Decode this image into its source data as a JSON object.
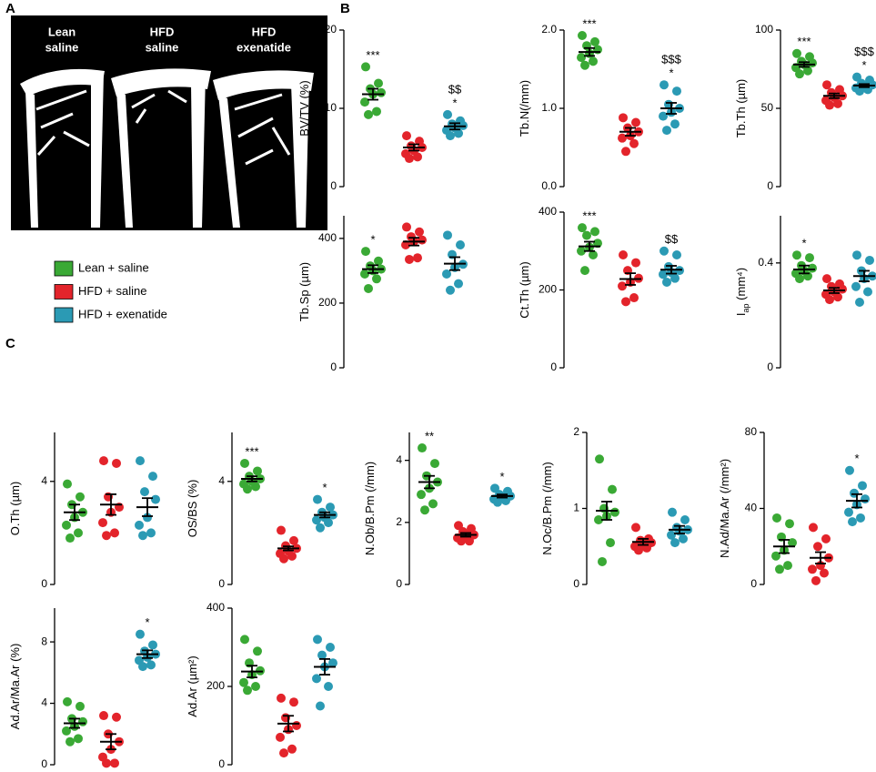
{
  "panels": [
    "A",
    "B",
    "C"
  ],
  "images": [
    {
      "label": [
        "Lean",
        "saline"
      ]
    },
    {
      "label": [
        "HFD",
        "saline"
      ]
    },
    {
      "label": [
        "HFD",
        "exenatide"
      ]
    }
  ],
  "groups": [
    {
      "name": "Lean + saline",
      "color": "#3aa935"
    },
    {
      "name": "HFD + saline",
      "color": "#e3242b"
    },
    {
      "name": "HFD + exenatide",
      "color": "#2b9ab4"
    }
  ],
  "chart_data": [
    {
      "type": "scatter",
      "ylabel": "BV/TV (%)",
      "ylim": [
        0,
        20
      ],
      "yticks": [
        0,
        10,
        20
      ],
      "series": [
        {
          "values": [
            15.3,
            13.2,
            12.5,
            12,
            11.8,
            10.8,
            9.6,
            9.2
          ],
          "mean": 11.8,
          "sem": 0.7,
          "annotations": [
            "***"
          ]
        },
        {
          "values": [
            6.5,
            5.8,
            5.2,
            5,
            4.6,
            4.2,
            3.8,
            3.6
          ],
          "mean": 5,
          "sem": 0.4,
          "annotations": []
        },
        {
          "values": [
            9.2,
            8.4,
            8,
            7.8,
            7.5,
            7.2,
            6.8,
            6.5
          ],
          "mean": 7.7,
          "sem": 0.4,
          "annotations": [
            "$$",
            "*"
          ]
        }
      ]
    },
    {
      "type": "scatter",
      "ylabel": "Tb.N(/mm)",
      "ylim": [
        0,
        2
      ],
      "yticks": [
        {
          "value": 0,
          "label": "0.0"
        },
        {
          "value": 1,
          "label": "1.0"
        },
        {
          "value": 2,
          "label": "2.0"
        }
      ],
      "series": [
        {
          "values": [
            1.93,
            1.85,
            1.8,
            1.75,
            1.7,
            1.65,
            1.6,
            1.55
          ],
          "mean": 1.72,
          "sem": 0.05,
          "annotations": [
            "***"
          ]
        },
        {
          "values": [
            0.88,
            0.82,
            0.75,
            0.7,
            0.65,
            0.62,
            0.55,
            0.45
          ],
          "mean": 0.7,
          "sem": 0.05,
          "annotations": []
        },
        {
          "values": [
            1.3,
            1.22,
            1.05,
            1.0,
            0.95,
            0.9,
            0.8,
            0.72
          ],
          "mean": 1.0,
          "sem": 0.07,
          "annotations": [
            "$$$",
            "*"
          ]
        }
      ]
    },
    {
      "type": "scatter",
      "ylabel": "Tb.Th (µm)",
      "ylim": [
        0,
        100
      ],
      "yticks": [
        0,
        50,
        100
      ],
      "series": [
        {
          "values": [
            85,
            83,
            80,
            79,
            78,
            76,
            74,
            72
          ],
          "mean": 78,
          "sem": 1.5,
          "annotations": [
            "***"
          ]
        },
        {
          "values": [
            65,
            62,
            60,
            58,
            57,
            55,
            53,
            52
          ],
          "mean": 58,
          "sem": 1.5,
          "annotations": []
        },
        {
          "values": [
            70,
            68,
            66,
            65,
            64,
            63,
            62,
            61
          ],
          "mean": 64.5,
          "sem": 1,
          "annotations": [
            "$$$",
            "*"
          ]
        }
      ]
    },
    {
      "type": "scatter",
      "ylabel": "Tb.Sp (µm)",
      "ylim": [
        0,
        470
      ],
      "yticks": [
        0,
        200,
        400
      ],
      "series": [
        {
          "values": [
            360,
            330,
            315,
            305,
            300,
            290,
            275,
            245
          ],
          "mean": 305,
          "sem": 12,
          "annotations": [
            "*"
          ]
        },
        {
          "values": [
            435,
            420,
            405,
            395,
            390,
            380,
            340,
            335
          ],
          "mean": 390,
          "sem": 12,
          "annotations": []
        },
        {
          "values": [
            410,
            380,
            350,
            320,
            310,
            290,
            260,
            240
          ],
          "mean": 322,
          "sem": 20,
          "annotations": []
        }
      ]
    },
    {
      "type": "scatter",
      "ylabel": "Ct.Th (µm)",
      "ylim": [
        0,
        400
      ],
      "yticks": [
        0,
        200,
        400
      ],
      "series": [
        {
          "values": [
            360,
            350,
            340,
            320,
            310,
            300,
            290,
            250
          ],
          "mean": 312,
          "sem": 12,
          "annotations": [
            "***"
          ]
        },
        {
          "values": [
            290,
            270,
            250,
            230,
            220,
            210,
            180,
            170
          ],
          "mean": 228,
          "sem": 15,
          "annotations": []
        },
        {
          "values": [
            300,
            290,
            260,
            250,
            245,
            240,
            230,
            220
          ],
          "mean": 252,
          "sem": 10,
          "annotations": [
            "$$"
          ]
        }
      ]
    },
    {
      "type": "scatter",
      "ylabel": "I",
      "ylabel_sub": "ap",
      "ylabel_unit": " (mm⁴)",
      "ylim": [
        0,
        0.58
      ],
      "yticks": [
        0,
        0.4
      ],
      "series": [
        {
          "values": [
            0.43,
            0.42,
            0.39,
            0.38,
            0.37,
            0.36,
            0.35,
            0.34
          ],
          "mean": 0.375,
          "sem": 0.015,
          "annotations": [
            "*"
          ]
        },
        {
          "values": [
            0.34,
            0.32,
            0.31,
            0.3,
            0.29,
            0.28,
            0.27,
            0.26
          ],
          "mean": 0.295,
          "sem": 0.01,
          "annotations": []
        },
        {
          "values": [
            0.43,
            0.41,
            0.37,
            0.35,
            0.34,
            0.31,
            0.29,
            0.25
          ],
          "mean": 0.35,
          "sem": 0.02,
          "annotations": []
        }
      ]
    },
    {
      "type": "scatter",
      "ylabel": "O.Th (µm)",
      "ylim": [
        0,
        5.9
      ],
      "yticks": [
        0,
        4
      ],
      "series": [
        {
          "values": [
            3.9,
            3.4,
            3.1,
            2.8,
            2.6,
            2.3,
            2.0,
            1.8
          ],
          "mean": 2.8,
          "sem": 0.3,
          "annotations": []
        },
        {
          "values": [
            4.8,
            4.7,
            3.4,
            3.0,
            2.8,
            2.4,
            2.0,
            1.9
          ],
          "mean": 3.1,
          "sem": 0.4,
          "annotations": []
        },
        {
          "values": [
            4.8,
            4.2,
            3.6,
            3.3,
            2.6,
            2.3,
            2.0,
            1.9
          ],
          "mean": 3.0,
          "sem": 0.35,
          "annotations": []
        }
      ]
    },
    {
      "type": "scatter",
      "ylabel": "OS/BS (%)",
      "ylim": [
        0,
        5.9
      ],
      "yticks": [
        0,
        4
      ],
      "series": [
        {
          "values": [
            4.7,
            4.4,
            4.2,
            4.1,
            4.0,
            3.9,
            3.8,
            3.7
          ],
          "mean": 4.1,
          "sem": 0.1,
          "annotations": [
            "***"
          ]
        },
        {
          "values": [
            2.1,
            1.7,
            1.5,
            1.4,
            1.3,
            1.2,
            1.1,
            1.0
          ],
          "mean": 1.4,
          "sem": 0.08,
          "annotations": []
        },
        {
          "values": [
            3.3,
            3.0,
            2.8,
            2.7,
            2.6,
            2.5,
            2.4,
            2.2
          ],
          "mean": 2.7,
          "sem": 0.1,
          "annotations": [
            "*"
          ]
        }
      ]
    },
    {
      "type": "scatter",
      "ylabel": "N.Ob/B.Pm (/mm)",
      "ylim": [
        0,
        4.9
      ],
      "yticks": [
        0,
        2,
        4
      ],
      "series": [
        {
          "values": [
            4.4,
            3.9,
            3.5,
            3.3,
            3.1,
            2.9,
            2.6,
            2.4
          ],
          "mean": 3.3,
          "sem": 0.2,
          "annotations": [
            "**"
          ]
        },
        {
          "values": [
            1.9,
            1.8,
            1.7,
            1.6,
            1.6,
            1.5,
            1.4,
            1.4
          ],
          "mean": 1.6,
          "sem": 0.06,
          "annotations": []
        },
        {
          "values": [
            3.1,
            3.0,
            2.9,
            2.85,
            2.8,
            2.75,
            2.7,
            2.65
          ],
          "mean": 2.85,
          "sem": 0.05,
          "annotations": [
            "*"
          ]
        }
      ]
    },
    {
      "type": "scatter",
      "ylabel": "N.Oc/B.Pm (/mm)",
      "ylim": [
        0,
        2
      ],
      "yticks": [
        0,
        1,
        2
      ],
      "series": [
        {
          "values": [
            1.65,
            1.25,
            1.0,
            0.95,
            0.9,
            0.85,
            0.55,
            0.3
          ],
          "mean": 0.97,
          "sem": 0.12,
          "annotations": []
        },
        {
          "values": [
            0.75,
            0.6,
            0.58,
            0.55,
            0.52,
            0.5,
            0.48,
            0.45
          ],
          "mean": 0.56,
          "sem": 0.04,
          "annotations": []
        },
        {
          "values": [
            0.95,
            0.85,
            0.75,
            0.72,
            0.7,
            0.65,
            0.6,
            0.55
          ],
          "mean": 0.72,
          "sem": 0.05,
          "annotations": []
        }
      ]
    },
    {
      "type": "scatter",
      "ylabel": "N.Ad/Ma.Ar (/mm²)",
      "ylim": [
        0,
        80
      ],
      "yticks": [
        0,
        40,
        80
      ],
      "series": [
        {
          "values": [
            35,
            32,
            25,
            22,
            18,
            15,
            10,
            8
          ],
          "mean": 20,
          "sem": 3.5,
          "annotations": []
        },
        {
          "values": [
            30,
            24,
            20,
            14,
            10,
            8,
            6,
            2
          ],
          "mean": 14,
          "sem": 3,
          "annotations": []
        },
        {
          "values": [
            60,
            52,
            48,
            45,
            42,
            38,
            35,
            33
          ],
          "mean": 44,
          "sem": 3.5,
          "annotations": [
            "*"
          ]
        }
      ]
    },
    {
      "type": "scatter",
      "ylabel": "Ad.Ar/Ma.Ar (%)",
      "ylim": [
        0,
        10.2
      ],
      "yticks": [
        0,
        4,
        8
      ],
      "series": [
        {
          "values": [
            4.1,
            3.8,
            3.0,
            2.8,
            2.5,
            2.2,
            1.7,
            1.5
          ],
          "mean": 2.7,
          "sem": 0.3,
          "annotations": []
        },
        {
          "values": [
            3.2,
            3.1,
            2.0,
            1.5,
            1.0,
            0.5,
            0.1,
            0.1
          ],
          "mean": 1.5,
          "sem": 0.5,
          "annotations": []
        },
        {
          "values": [
            8.5,
            7.8,
            7.4,
            7.2,
            7.0,
            6.8,
            6.5,
            6.4
          ],
          "mean": 7.2,
          "sem": 0.25,
          "annotations": [
            "*"
          ]
        }
      ]
    },
    {
      "type": "scatter",
      "ylabel": "Ad.Ar (µm²)",
      "ylim": [
        0,
        400
      ],
      "yticks": [
        0,
        200,
        400
      ],
      "series": [
        {
          "values": [
            320,
            290,
            260,
            240,
            230,
            210,
            200,
            190
          ],
          "mean": 238,
          "sem": 15,
          "annotations": []
        },
        {
          "values": [
            170,
            160,
            120,
            100,
            90,
            70,
            40,
            30
          ],
          "mean": 105,
          "sem": 20,
          "annotations": []
        },
        {
          "values": [
            320,
            300,
            280,
            260,
            250,
            220,
            200,
            150
          ],
          "mean": 250,
          "sem": 20,
          "annotations": []
        }
      ]
    }
  ]
}
